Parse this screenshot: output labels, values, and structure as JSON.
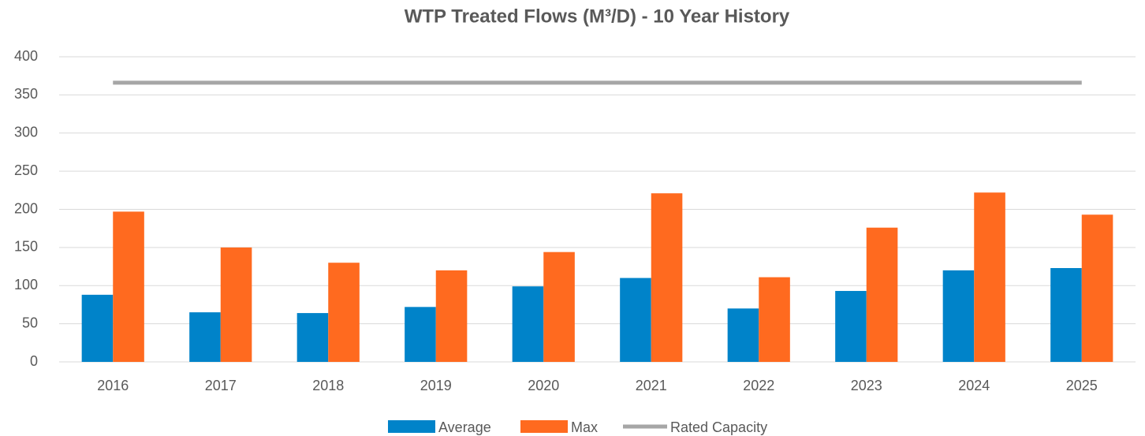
{
  "chart_data": {
    "type": "bar",
    "title": "WTP Treated Flows (M³/D) - 10 Year History",
    "categories": [
      "2016",
      "2017",
      "2018",
      "2019",
      "2020",
      "2021",
      "2022",
      "2023",
      "2024",
      "2025"
    ],
    "series": [
      {
        "name": "Average",
        "type": "bar",
        "color": "#0083c9",
        "values": [
          88,
          65,
          64,
          72,
          99,
          110,
          70,
          93,
          120,
          123
        ]
      },
      {
        "name": "Max",
        "type": "bar",
        "color": "#ff6a1f",
        "values": [
          197,
          150,
          130,
          120,
          144,
          221,
          111,
          176,
          222,
          193
        ]
      },
      {
        "name": "Rated Capacity",
        "type": "line",
        "color": "#a6a6a6",
        "values": [
          366,
          366,
          366,
          366,
          366,
          366,
          366,
          366,
          366,
          366
        ]
      }
    ],
    "ylim": [
      0,
      400
    ],
    "yticks": [
      0,
      50,
      100,
      150,
      200,
      250,
      300,
      350,
      400
    ],
    "grid": true,
    "legend": "bottom"
  }
}
